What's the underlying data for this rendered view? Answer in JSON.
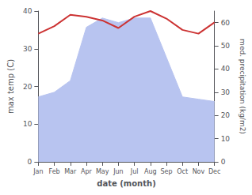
{
  "chart_data": {
    "type": "line",
    "xlabel": "date (month)",
    "ylabel": "max temp (C)",
    "y2label": "med. precipitation (kg/m2)",
    "categories": [
      "Jan",
      "Feb",
      "Mar",
      "Apr",
      "May",
      "Jun",
      "Jul",
      "Aug",
      "Sep",
      "Oct",
      "Nov",
      "Dec"
    ],
    "series": [
      {
        "type": "area",
        "axis": "y2",
        "color": "#b8c4f0",
        "values": [
          28,
          30,
          35,
          58,
          62,
          60,
          62,
          62,
          45,
          28,
          27,
          26
        ]
      },
      {
        "type": "line",
        "color": "#cc3333",
        "values": [
          34,
          36,
          39,
          38.5,
          37.5,
          35.5,
          38.5,
          40,
          38,
          35,
          34,
          37
        ]
      }
    ],
    "ylim": [
      0,
      40
    ],
    "yticks": [
      0,
      10,
      20,
      30,
      40
    ],
    "y2lim": [
      0,
      65
    ],
    "y2ticks": [
      0,
      10,
      20,
      30,
      40,
      50,
      60
    ],
    "grid": false
  }
}
